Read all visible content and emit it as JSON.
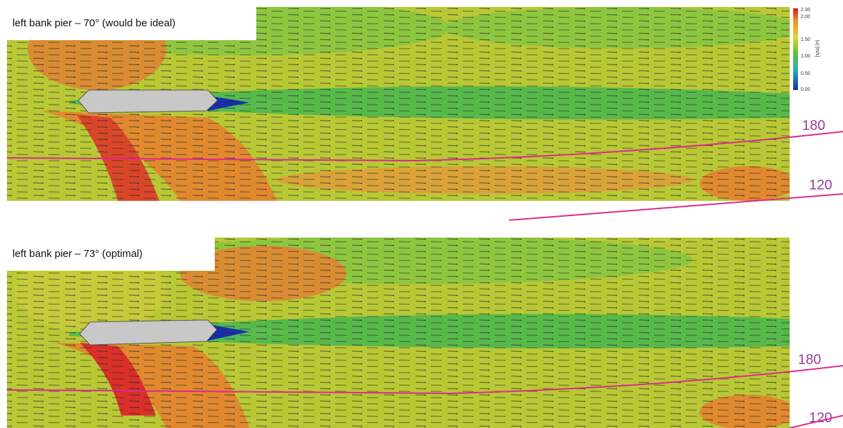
{
  "panels": [
    {
      "label": "left bank pier – 70° (would be ideal)",
      "contours": [
        "180",
        "120"
      ]
    },
    {
      "label": "left bank pier – 73° (optimal)",
      "contours": [
        "180",
        "120"
      ]
    }
  ],
  "colorbar": {
    "ticks": [
      "2.30",
      "2.00",
      "1.50",
      "1.00",
      "0.50",
      "0.00"
    ],
    "label": "|u| [m/s]"
  }
}
